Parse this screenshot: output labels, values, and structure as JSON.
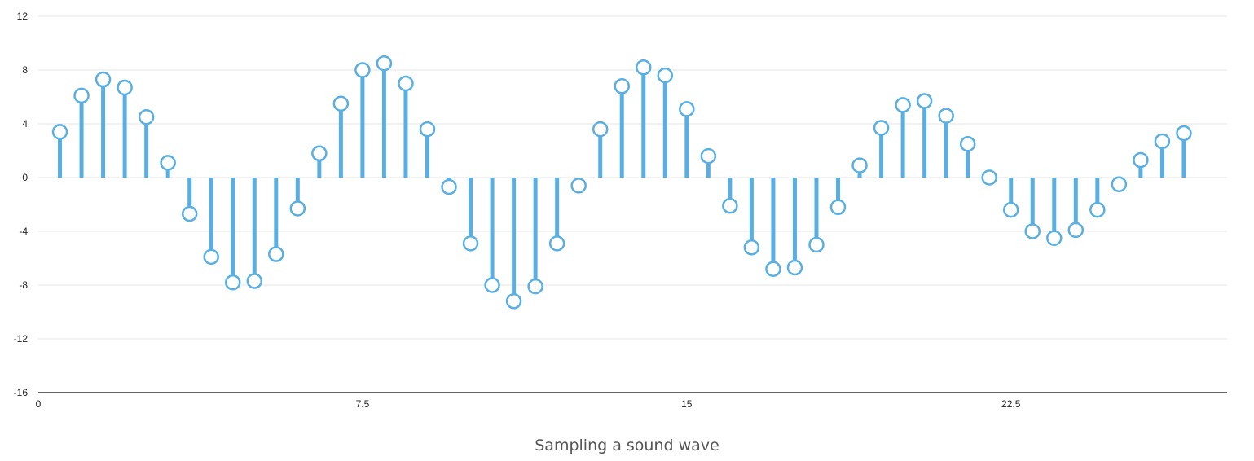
{
  "chart_data": {
    "type": "stem",
    "title": "",
    "caption": "Sampling a sound wave",
    "xlabel": "",
    "ylabel": "",
    "xlim": [
      0,
      27.5
    ],
    "ylim": [
      -16,
      12
    ],
    "xticks": [
      0,
      7.5,
      15,
      22.5
    ],
    "xtick_labels": [
      "0",
      "7.5",
      "15",
      "22.5"
    ],
    "yticks": [
      12,
      8,
      4,
      0,
      -4,
      -8,
      -12,
      -16
    ],
    "ytick_labels": [
      "12",
      "8",
      "4",
      "0",
      "-4",
      "-8",
      "-12",
      "-16"
    ],
    "grid": "horizontal",
    "legend": "none",
    "series": [
      {
        "x": [
          0.5,
          1.0,
          1.5,
          2.0,
          2.5,
          3.0,
          3.5,
          4.0,
          4.5,
          5.0,
          5.5,
          6.0,
          6.5,
          7.0,
          7.5,
          8.0,
          8.5,
          9.0,
          9.5,
          10.0,
          10.5,
          11.0,
          11.5,
          12.0,
          12.5,
          13.0,
          13.5,
          14.0,
          14.5,
          15.0,
          15.5,
          16.0,
          16.5,
          17.0,
          17.5,
          18.0,
          18.5,
          19.0,
          19.5,
          20.0,
          20.5,
          21.0,
          21.5,
          22.0,
          22.5,
          23.0,
          23.5,
          24.0,
          24.5,
          25.0,
          25.5,
          26.0,
          26.5
        ],
        "y": [
          3.4,
          6.1,
          7.3,
          6.7,
          4.5,
          1.1,
          -2.7,
          -5.9,
          -7.8,
          -7.7,
          -5.7,
          -2.3,
          1.8,
          5.5,
          8.0,
          8.5,
          7.0,
          3.6,
          -0.7,
          -4.9,
          -8.0,
          -9.2,
          -8.1,
          -4.9,
          -0.6,
          3.6,
          6.8,
          8.2,
          7.6,
          5.1,
          1.6,
          -2.1,
          -5.2,
          -6.8,
          -6.7,
          -5.0,
          -2.2,
          0.9,
          3.7,
          5.4,
          5.7,
          4.6,
          2.5,
          0.0,
          -2.4,
          -4.0,
          -4.5,
          -3.9,
          -2.4,
          -0.5,
          1.3,
          2.7,
          3.3
        ]
      }
    ],
    "colors": {
      "stem": "#5aafe2",
      "marker_fill": "#ffffff",
      "grid": "#e6e6e6",
      "axis": "#333333"
    }
  }
}
